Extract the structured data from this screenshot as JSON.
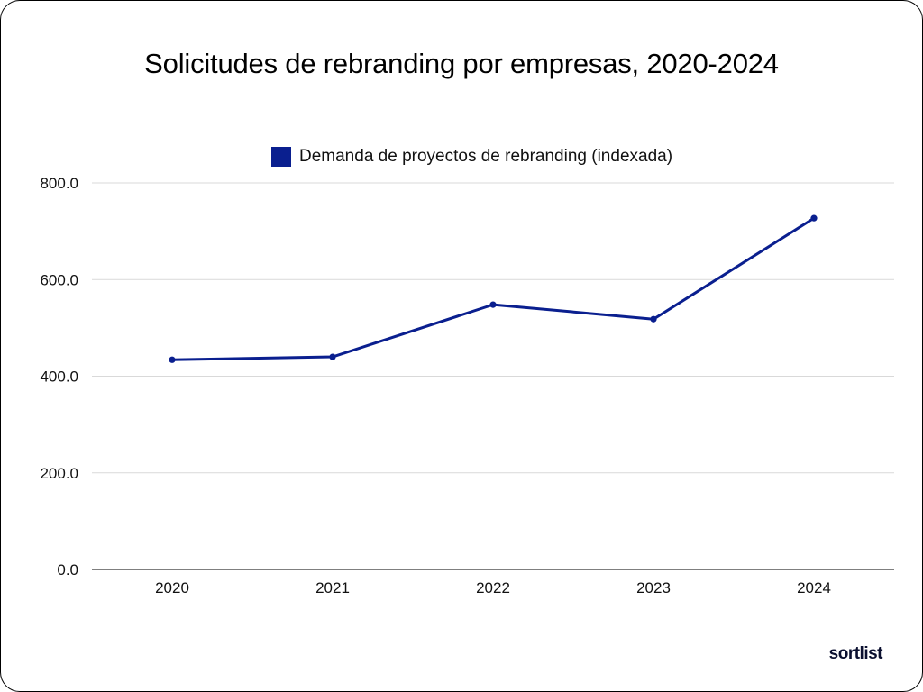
{
  "chart_data": {
    "type": "line",
    "title": "Solicitudes de rebranding por empresas, 2020-2024",
    "categories": [
      "2020",
      "2021",
      "2022",
      "2023",
      "2024"
    ],
    "series": [
      {
        "name": "Demanda de proyectos de rebranding (indexada)",
        "values": [
          434,
          440,
          548,
          518,
          727
        ],
        "color": "#0a1f8f"
      }
    ],
    "yticks": [
      "800.0",
      "600.0",
      "400.0",
      "200.0",
      "0.0"
    ],
    "ylim": [
      0,
      800
    ],
    "grid": true,
    "legend_position": "top-center",
    "xlabel": "",
    "ylabel": ""
  },
  "brand": "sortlist"
}
